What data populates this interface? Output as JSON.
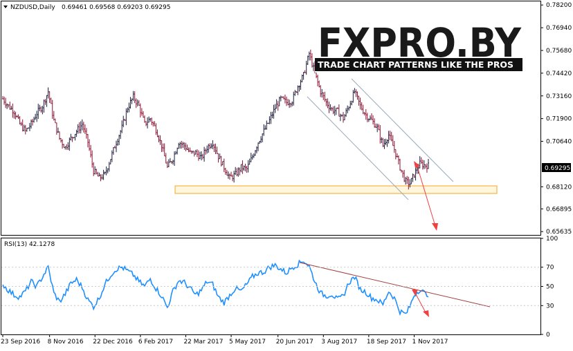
{
  "header": {
    "symbol_timeframe": "NZDUSD,Daily",
    "ohlc": "0.69461 0.69568 0.69203 0.69295",
    "rsi_label": "RSI(13) 42.1278"
  },
  "logo": {
    "text": "FXPRO.BY",
    "tagline": "TRADE CHART PATTERNS LIKE THE PROS"
  },
  "colors": {
    "background": "#ffffff",
    "up_bar": "#1a1a3a",
    "down_bar": "#8a1030",
    "rsi_line": "#1e8fff",
    "channel": "#9aa9b8",
    "support_zone": "#f5a623",
    "projection_arrow": "#f04040",
    "rsi_trendline": "#a04040",
    "current_price_box": "#000000"
  },
  "chart_data": [
    {
      "type": "ohlc",
      "title": "NZDUSD,Daily",
      "ylim": [
        0.6545,
        0.784
      ],
      "price_ticks": [
        "0.78200",
        "0.76940",
        "0.75680",
        "0.74420",
        "0.73160",
        "0.71900",
        "0.70640",
        "0.69295",
        "0.68120",
        "0.66895",
        "0.65635"
      ],
      "price_tick_values": [
        0.782,
        0.7694,
        0.7568,
        0.7442,
        0.7316,
        0.719,
        0.7064,
        0.69295,
        0.6812,
        0.66895,
        0.65635
      ],
      "current_price": "0.69295",
      "x_ticks": [
        "23 Sep 2016",
        "8 Nov 2016",
        "22 Dec 2016",
        "6 Feb 2017",
        "22 Mar 2017",
        "5 May 2017",
        "20 Jun 2017",
        "3 Aug 2017",
        "18 Sep 2017",
        "1 Nov 2017"
      ],
      "x_tick_index": [
        0,
        33,
        65,
        97,
        129,
        161,
        194,
        226,
        258,
        290
      ],
      "close_path": [
        [
          0,
          0.73
        ],
        [
          4,
          0.726
        ],
        [
          8,
          0.723
        ],
        [
          12,
          0.716
        ],
        [
          16,
          0.712
        ],
        [
          20,
          0.716
        ],
        [
          24,
          0.722
        ],
        [
          28,
          0.726
        ],
        [
          32,
          0.734
        ],
        [
          36,
          0.718
        ],
        [
          40,
          0.708
        ],
        [
          44,
          0.703
        ],
        [
          48,
          0.708
        ],
        [
          52,
          0.712
        ],
        [
          56,
          0.716
        ],
        [
          60,
          0.706
        ],
        [
          64,
          0.69
        ],
        [
          68,
          0.686
        ],
        [
          72,
          0.688
        ],
        [
          76,
          0.697
        ],
        [
          80,
          0.706
        ],
        [
          84,
          0.714
        ],
        [
          88,
          0.725
        ],
        [
          92,
          0.731
        ],
        [
          96,
          0.726
        ],
        [
          100,
          0.716
        ],
        [
          104,
          0.719
        ],
        [
          108,
          0.713
        ],
        [
          112,
          0.704
        ],
        [
          116,
          0.692
        ],
        [
          120,
          0.697
        ],
        [
          124,
          0.706
        ],
        [
          128,
          0.704
        ],
        [
          132,
          0.7
        ],
        [
          136,
          0.7
        ],
        [
          140,
          0.697
        ],
        [
          144,
          0.703
        ],
        [
          148,
          0.706
        ],
        [
          152,
          0.698
        ],
        [
          156,
          0.692
        ],
        [
          160,
          0.686
        ],
        [
          164,
          0.688
        ],
        [
          168,
          0.692
        ],
        [
          172,
          0.691
        ],
        [
          176,
          0.698
        ],
        [
          180,
          0.706
        ],
        [
          184,
          0.712
        ],
        [
          188,
          0.718
        ],
        [
          192,
          0.725
        ],
        [
          196,
          0.73
        ],
        [
          200,
          0.728
        ],
        [
          204,
          0.729
        ],
        [
          208,
          0.737
        ],
        [
          212,
          0.743
        ],
        [
          216,
          0.755
        ],
        [
          220,
          0.744
        ],
        [
          224,
          0.734
        ],
        [
          228,
          0.728
        ],
        [
          232,
          0.724
        ],
        [
          236,
          0.723
        ],
        [
          240,
          0.719
        ],
        [
          244,
          0.726
        ],
        [
          248,
          0.734
        ],
        [
          252,
          0.726
        ],
        [
          256,
          0.721
        ],
        [
          260,
          0.718
        ],
        [
          264,
          0.714
        ],
        [
          268,
          0.704
        ],
        [
          272,
          0.71
        ],
        [
          276,
          0.702
        ],
        [
          280,
          0.692
        ],
        [
          284,
          0.684
        ],
        [
          287,
          0.683
        ],
        [
          290,
          0.688
        ],
        [
          294,
          0.694
        ],
        [
          298,
          0.693
        ],
        [
          300,
          0.693
        ]
      ]
    },
    {
      "type": "line",
      "title": "RSI(13) 42.1278",
      "ylim": [
        0,
        100
      ],
      "y_ticks": [
        "100",
        "70",
        "50",
        "30",
        "0"
      ],
      "y_tick_values": [
        100,
        70,
        50,
        30,
        0
      ],
      "series": [
        {
          "values": [
            [
              0,
              52
            ],
            [
              4,
              46
            ],
            [
              8,
              41
            ],
            [
              12,
              39
            ],
            [
              16,
              45
            ],
            [
              20,
              55
            ],
            [
              24,
              50
            ],
            [
              28,
              60
            ],
            [
              32,
              70
            ],
            [
              36,
              43
            ],
            [
              40,
              34
            ],
            [
              44,
              42
            ],
            [
              48,
              53
            ],
            [
              52,
              57
            ],
            [
              56,
              49
            ],
            [
              60,
              36
            ],
            [
              64,
              29
            ],
            [
              68,
              38
            ],
            [
              72,
              52
            ],
            [
              76,
              62
            ],
            [
              80,
              68
            ],
            [
              84,
              70
            ],
            [
              88,
              66
            ],
            [
              92,
              62
            ],
            [
              96,
              55
            ],
            [
              100,
              50
            ],
            [
              104,
              58
            ],
            [
              108,
              48
            ],
            [
              112,
              40
            ],
            [
              116,
              28
            ],
            [
              120,
              45
            ],
            [
              124,
              56
            ],
            [
              128,
              54
            ],
            [
              132,
              48
            ],
            [
              136,
              41
            ],
            [
              140,
              46
            ],
            [
              144,
              55
            ],
            [
              148,
              52
            ],
            [
              152,
              39
            ],
            [
              156,
              33
            ],
            [
              160,
              41
            ],
            [
              164,
              48
            ],
            [
              168,
              45
            ],
            [
              172,
              52
            ],
            [
              176,
              60
            ],
            [
              180,
              64
            ],
            [
              184,
              65
            ],
            [
              188,
              70
            ],
            [
              192,
              72
            ],
            [
              196,
              68
            ],
            [
              200,
              64
            ],
            [
              204,
              70
            ],
            [
              208,
              73
            ],
            [
              212,
              77
            ],
            [
              216,
              71
            ],
            [
              220,
              55
            ],
            [
              224,
              43
            ],
            [
              228,
              40
            ],
            [
              232,
              42
            ],
            [
              236,
              36
            ],
            [
              240,
              40
            ],
            [
              244,
              54
            ],
            [
              248,
              60
            ],
            [
              252,
              47
            ],
            [
              256,
              44
            ],
            [
              260,
              38
            ],
            [
              264,
              36
            ],
            [
              268,
              31
            ],
            [
              272,
              45
            ],
            [
              276,
              38
            ],
            [
              280,
              24
            ],
            [
              284,
              21
            ],
            [
              287,
              29
            ],
            [
              290,
              41
            ],
            [
              294,
              47
            ],
            [
              298,
              42
            ],
            [
              300,
              42
            ]
          ]
        }
      ]
    }
  ]
}
